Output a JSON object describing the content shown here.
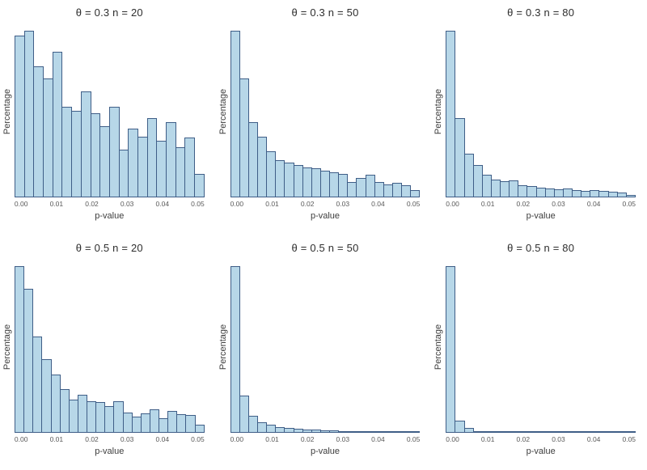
{
  "figure": {
    "background": "#ffffff",
    "bar_fill": "#b7d7e8",
    "bar_border": "#3f5e87",
    "title_color": "#2e2e2e",
    "axis_label_color": "#3d3d3d",
    "tick_label_color": "#595959"
  },
  "axes": {
    "xlabel": "p-value",
    "ylabel": "Percentage",
    "x_ticks": [
      "0.00",
      "0.01",
      "0.02",
      "0.03",
      "0.04",
      "0.05"
    ],
    "xlim": [
      0,
      0.05
    ],
    "y_axis_tick_labels": "none (unlabeled Percentage axis)"
  },
  "chart_data": [
    {
      "type": "bar",
      "subtype": "histogram",
      "title": "θ = 0.3 n = 20",
      "theta": 0.3,
      "n": 20,
      "xlabel": "p-value",
      "ylabel": "Percentage",
      "x_start": 0,
      "bin_width": 0.0025,
      "values_unit": "percent of panel max bar (y axis unlabeled)",
      "values": [
        97.2,
        100,
        78.8,
        71.6,
        87.6,
        54.3,
        52.2,
        63.9,
        50.7,
        42.9,
        54.6,
        28.7,
        41.1,
        36.7,
        47.8,
        34.1,
        45.0,
        30.2,
        36.0,
        14.0
      ]
    },
    {
      "type": "bar",
      "subtype": "histogram",
      "title": "θ = 0.3 n = 50",
      "theta": 0.3,
      "n": 50,
      "xlabel": "p-value",
      "ylabel": "Percentage",
      "x_start": 0,
      "bin_width": 0.0025,
      "values_unit": "percent of panel max bar (y axis unlabeled)",
      "values": [
        100,
        71.5,
        45.2,
        36.7,
        27.8,
        22.5,
        21.0,
        19.4,
        18.2,
        17.3,
        16.2,
        15.1,
        13.9,
        9.4,
        11.6,
        13.6,
        9.1,
        7.9,
        8.6,
        7.1,
        4.5
      ]
    },
    {
      "type": "bar",
      "subtype": "histogram",
      "title": "θ = 0.3 n = 80",
      "theta": 0.3,
      "n": 80,
      "xlabel": "p-value",
      "ylabel": "Percentage",
      "x_start": 0,
      "bin_width": 0.0025,
      "values_unit": "percent of panel max bar (y axis unlabeled)",
      "values": [
        100,
        47.8,
        26.2,
        19.4,
        13.6,
        10.8,
        9.6,
        10.2,
        7.4,
        6.8,
        5.9,
        5.4,
        4.8,
        5.2,
        4.6,
        4.0,
        4.6,
        3.7,
        3.2,
        3.1,
        1.5
      ]
    },
    {
      "type": "bar",
      "subtype": "histogram",
      "title": "θ = 0.5 n = 20",
      "theta": 0.5,
      "n": 20,
      "xlabel": "p-value",
      "ylabel": "Percentage",
      "x_start": 0,
      "bin_width": 0.0025,
      "values_unit": "percent of panel max bar (y axis unlabeled)",
      "values": [
        100,
        86.2,
        57.5,
        44.2,
        34.8,
        25.9,
        19.6,
        22.4,
        18.5,
        18.3,
        16.0,
        18.5,
        11.8,
        9.7,
        11.3,
        14.1,
        8.3,
        12.9,
        11.0,
        10.5,
        4.4
      ]
    },
    {
      "type": "bar",
      "subtype": "histogram",
      "title": "θ = 0.5 n = 50",
      "theta": 0.5,
      "n": 50,
      "xlabel": "p-value",
      "ylabel": "Percentage",
      "x_start": 0,
      "bin_width": 0.0025,
      "values_unit": "percent of panel max bar (y axis unlabeled)",
      "values": [
        100,
        22.1,
        10.1,
        6.2,
        4.4,
        3.4,
        2.6,
        2.0,
        1.7,
        1.6,
        1.2,
        1.2,
        0.9,
        0.9,
        0.8,
        0.8,
        0.6,
        0.6,
        0.5,
        0.5,
        0.3
      ]
    },
    {
      "type": "bar",
      "subtype": "histogram",
      "title": "θ = 0.5 n = 80",
      "theta": 0.5,
      "n": 80,
      "xlabel": "p-value",
      "ylabel": "Percentage",
      "x_start": 0,
      "bin_width": 0.0025,
      "values_unit": "percent of panel max bar (y axis unlabeled)",
      "values": [
        100,
        6.9,
        2.6,
        0.9,
        0.6,
        0.5,
        0.3,
        0.3,
        0.3,
        0.5,
        0.3,
        0.5,
        0.2,
        0.2,
        0.2,
        0.2,
        0.2,
        0.3,
        0.2,
        0.2,
        0.2
      ]
    }
  ]
}
